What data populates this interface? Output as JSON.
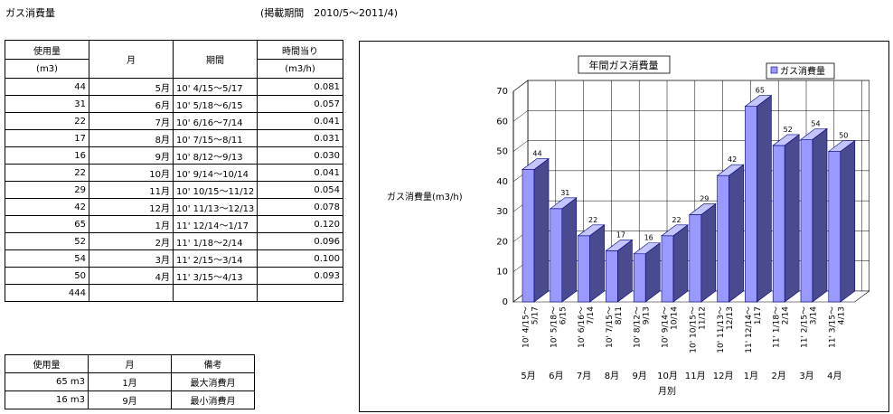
{
  "header": {
    "title": "ガス消費量",
    "period_note": "(掲載期間　2010/5～2011/4)"
  },
  "main_table": {
    "headers": {
      "usage": "使用量",
      "usage_unit": "(m3)",
      "month": "月",
      "period": "期間",
      "hourly": "時間当り",
      "hourly_unit": "(m3/h)"
    },
    "rows": [
      {
        "usage": "44",
        "month": "5月",
        "period": "10' 4/15～5/17",
        "hourly": "0.081"
      },
      {
        "usage": "31",
        "month": "6月",
        "period": "10' 5/18～6/15",
        "hourly": "0.057"
      },
      {
        "usage": "22",
        "month": "7月",
        "period": "10' 6/16～7/14",
        "hourly": "0.041"
      },
      {
        "usage": "17",
        "month": "8月",
        "period": "10' 7/15～8/11",
        "hourly": "0.031"
      },
      {
        "usage": "16",
        "month": "9月",
        "period": "10' 8/12～9/13",
        "hourly": "0.030"
      },
      {
        "usage": "22",
        "month": "10月",
        "period": "10' 9/14～10/14",
        "hourly": "0.041"
      },
      {
        "usage": "29",
        "month": "11月",
        "period": "10' 10/15～11/12",
        "hourly": "0.054"
      },
      {
        "usage": "42",
        "month": "12月",
        "period": "10' 11/13～12/13",
        "hourly": "0.078"
      },
      {
        "usage": "65",
        "month": "1月",
        "period": "11' 12/14～1/17",
        "hourly": "0.120"
      },
      {
        "usage": "52",
        "month": "2月",
        "period": "11' 1/18～2/14",
        "hourly": "0.096"
      },
      {
        "usage": "54",
        "month": "3月",
        "period": "11' 2/15～3/14",
        "hourly": "0.100"
      },
      {
        "usage": "50",
        "month": "4月",
        "period": "11' 3/15～4/13",
        "hourly": "0.093"
      }
    ],
    "total": "444"
  },
  "sub_table": {
    "headers": {
      "usage": "使用量",
      "month": "月",
      "note": "備考"
    },
    "rows": [
      {
        "usage": "65 m3",
        "month": "1月",
        "note": "最大消費月"
      },
      {
        "usage": "16 m3",
        "month": "9月",
        "note": "最小消費月"
      }
    ]
  },
  "chart_data": {
    "type": "bar",
    "title": "年間ガス消費量",
    "ylabel": "ガス消費量(m3/h)",
    "xlabel": "月別",
    "legend": "top-right",
    "grid": true,
    "ylim": [
      0,
      70
    ],
    "yticks": [
      "0",
      "10",
      "20",
      "30",
      "40",
      "50",
      "60",
      "70"
    ],
    "categories": [
      "10' 4/15～ 5/17",
      "10' 5/18～ 6/15",
      "10' 6/16～ 7/14",
      "10' 7/15～ 8/11",
      "10' 8/12～ 9/13",
      "10' 9/14～ 10/14",
      "10' 10/15～ 11/12",
      "10' 11/13～ 12/13",
      "11' 12/14～ 1/17",
      "11' 1/18～ 2/14",
      "11' 2/15～ 3/14",
      "11' 3/15～ 4/13"
    ],
    "months": [
      "5月",
      "6月",
      "7月",
      "8月",
      "9月",
      "10月",
      "11月",
      "12月",
      "1月",
      "2月",
      "3月",
      "4月"
    ],
    "series": [
      {
        "name": "ガス消費量",
        "values": [
          44,
          31,
          22,
          17,
          16,
          22,
          29,
          42,
          65,
          52,
          54,
          50
        ]
      }
    ],
    "colors": {
      "front": "#9999ff",
      "side": "#4a4a8f",
      "top": "#c4c4ff",
      "edge": "#000080"
    }
  }
}
